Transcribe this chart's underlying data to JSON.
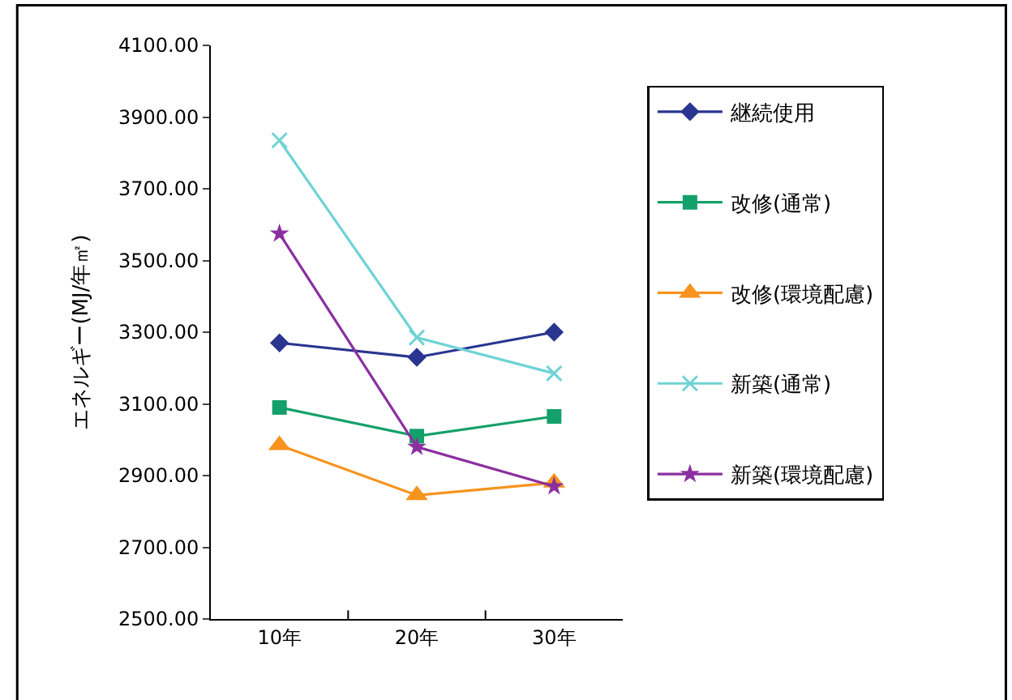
{
  "chart_data": {
    "type": "line",
    "ylabel": "エネルギー(MJ/年㎡)",
    "categories": [
      "10年",
      "20年",
      "30年"
    ],
    "series": [
      {
        "name": "継続使用",
        "color": "#2a3590",
        "marker": "diamond",
        "values": [
          3270,
          3230,
          3300
        ]
      },
      {
        "name": "改修(通常)",
        "color": "#14a06a",
        "marker": "square",
        "values": [
          3090,
          3010,
          3065
        ]
      },
      {
        "name": "改修(環境配慮)",
        "color": "#f7931e",
        "marker": "triangle",
        "values": [
          2985,
          2845,
          2880
        ]
      },
      {
        "name": "新築(通常)",
        "color": "#6fd3d6",
        "marker": "cross",
        "values": [
          3835,
          3285,
          3185
        ]
      },
      {
        "name": "新築(環境配慮)",
        "color": "#8b2fa0",
        "marker": "star",
        "values": [
          3575,
          2980,
          2870
        ]
      }
    ],
    "ylim": [
      2500,
      4100
    ],
    "yticks": [
      {
        "value": 2500,
        "label": "2500.00"
      },
      {
        "value": 2700,
        "label": "2700.00"
      },
      {
        "value": 2900,
        "label": "2900.00"
      },
      {
        "value": 3100,
        "label": "3100.00"
      },
      {
        "value": 3300,
        "label": "3300.00"
      },
      {
        "value": 3500,
        "label": "3500.00"
      },
      {
        "value": 3700,
        "label": "3700.00"
      },
      {
        "value": 3900,
        "label": "3900.00"
      },
      {
        "value": 4100,
        "label": "4100.00"
      }
    ],
    "legend": "right",
    "line_style": "solid"
  }
}
